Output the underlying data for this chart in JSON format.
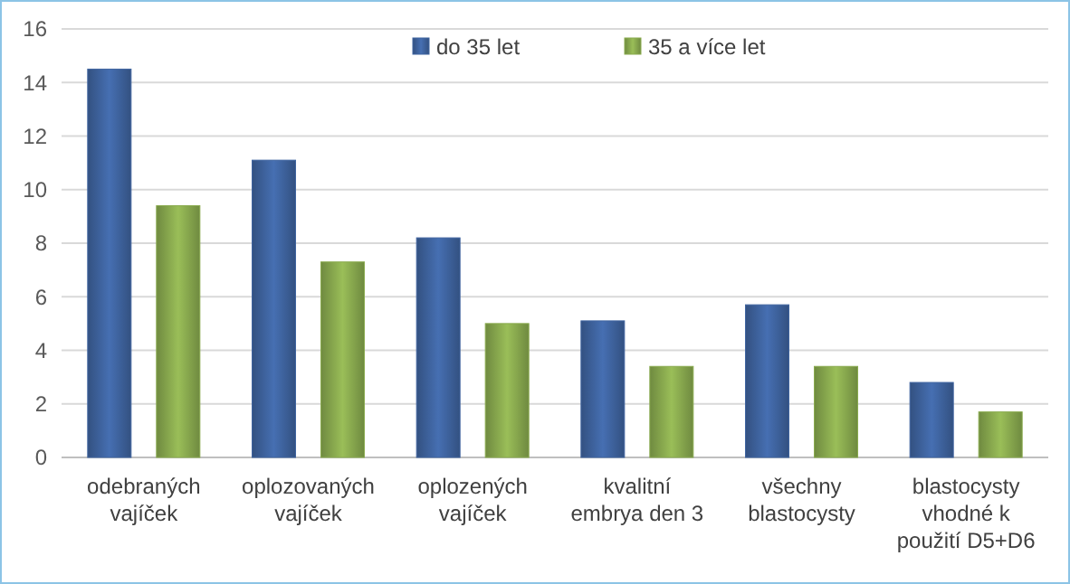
{
  "chart_data": {
    "type": "bar",
    "categories": [
      "odebraných\nvajíček",
      "oplozovaných\nvajíček",
      "oplozených\nvajíček",
      "kvalitní\nembrya den 3",
      "všechny\nblastocysty",
      "blastocysty\nvhodné k\npoužití D5+D6"
    ],
    "series": [
      {
        "name": "do 35 let",
        "color": "#3f64a0",
        "values": [
          14.5,
          11.1,
          8.2,
          5.1,
          5.7,
          2.8
        ]
      },
      {
        "name": "35 a více let",
        "color": "#8aab4f",
        "values": [
          9.4,
          7.3,
          5.0,
          3.4,
          3.4,
          1.7
        ]
      }
    ],
    "ylim": [
      0,
      16
    ],
    "yticks": [
      0,
      2,
      4,
      6,
      8,
      10,
      12,
      14,
      16
    ],
    "grid": "y",
    "legend": "top"
  }
}
